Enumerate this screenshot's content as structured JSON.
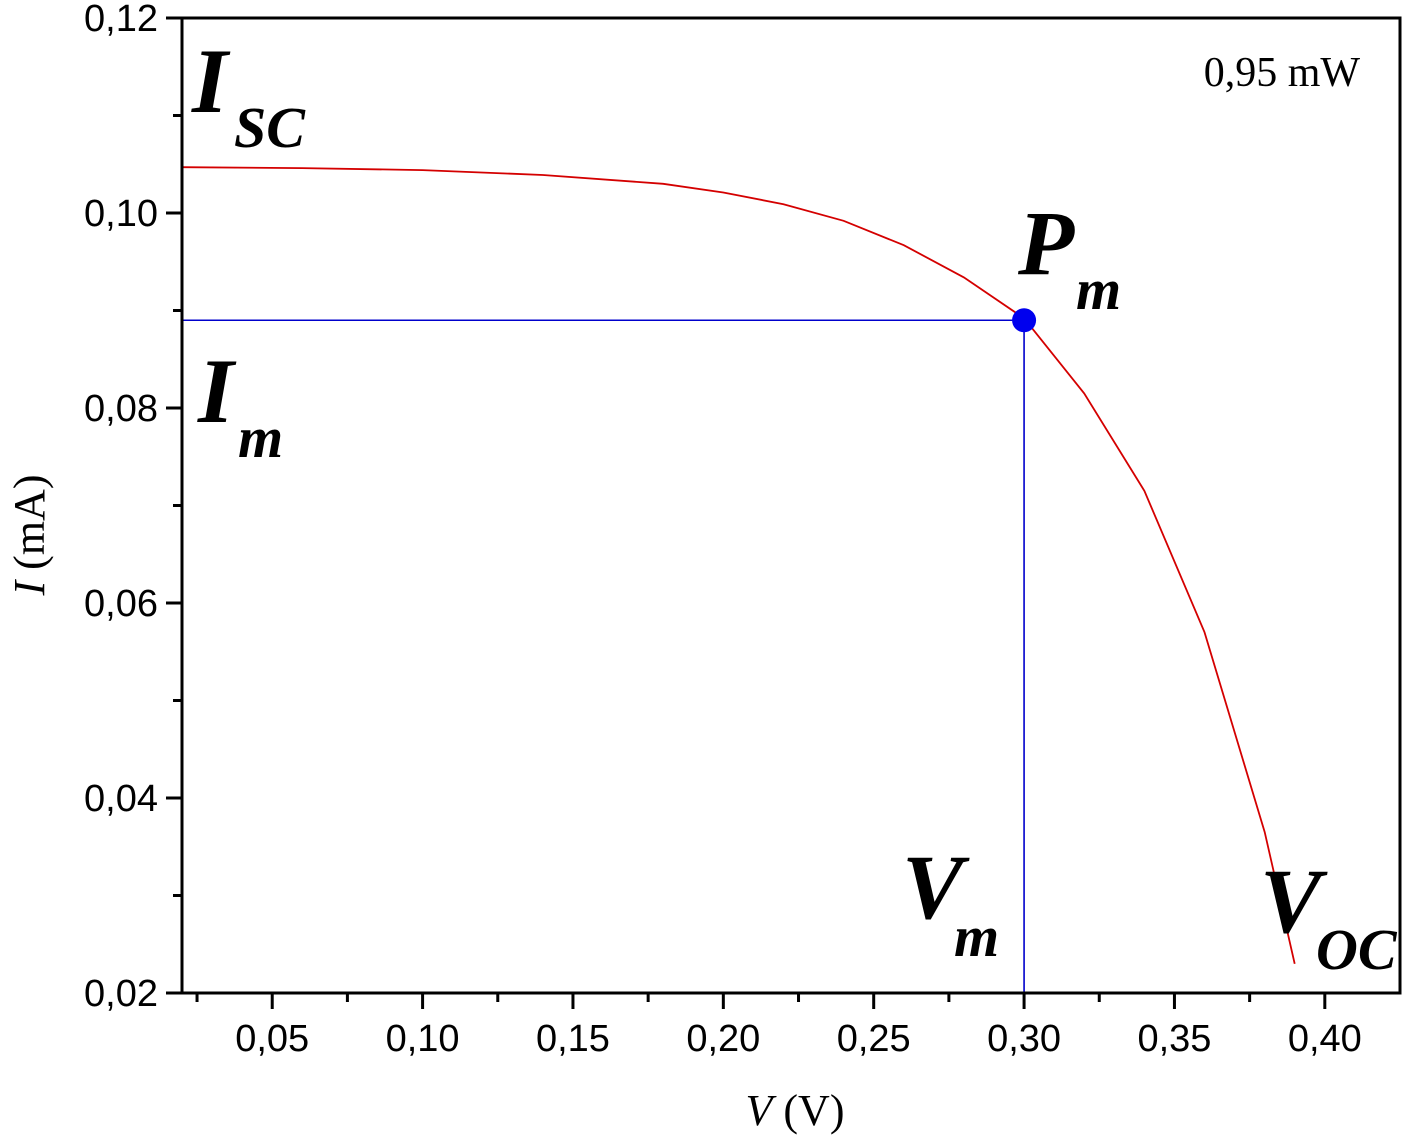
{
  "chart_data": {
    "type": "line",
    "xlabel": {
      "var": "V",
      "unit": " (V)"
    },
    "ylabel": {
      "var": "I",
      "unit": " (mA)"
    },
    "xlim": [
      0.02,
      0.425
    ],
    "ylim": [
      0.02,
      0.12
    ],
    "x_ticks": [
      {
        "value": 0.05,
        "label": "0,05"
      },
      {
        "value": 0.1,
        "label": "0,10"
      },
      {
        "value": 0.15,
        "label": "0,15"
      },
      {
        "value": 0.2,
        "label": "0,20"
      },
      {
        "value": 0.25,
        "label": "0,25"
      },
      {
        "value": 0.3,
        "label": "0,30"
      },
      {
        "value": 0.35,
        "label": "0,35"
      },
      {
        "value": 0.4,
        "label": "0,40"
      }
    ],
    "x_minor_ticks": [
      0.025,
      0.075,
      0.125,
      0.175,
      0.225,
      0.275,
      0.325,
      0.375
    ],
    "y_ticks": [
      {
        "value": 0.02,
        "label": "0,02"
      },
      {
        "value": 0.04,
        "label": "0,04"
      },
      {
        "value": 0.06,
        "label": "0,06"
      },
      {
        "value": 0.08,
        "label": "0,08"
      },
      {
        "value": 0.1,
        "label": "0,10"
      },
      {
        "value": 0.12,
        "label": "0,12"
      }
    ],
    "y_minor_ticks": [
      0.03,
      0.05,
      0.07,
      0.09,
      0.11
    ],
    "series": [
      {
        "color": "#d40000",
        "x": [
          0.02,
          0.06,
          0.1,
          0.14,
          0.18,
          0.2,
          0.22,
          0.24,
          0.26,
          0.28,
          0.3,
          0.32,
          0.34,
          0.36,
          0.38,
          0.39
        ],
        "y": [
          0.1047,
          0.1046,
          0.1044,
          0.1039,
          0.103,
          0.1021,
          0.1009,
          0.0992,
          0.0967,
          0.0934,
          0.0892,
          0.0815,
          0.0715,
          0.057,
          0.0365,
          0.023
        ]
      }
    ],
    "max_power_point": {
      "x": 0.3,
      "y": 0.089,
      "color": "#0000ee"
    },
    "guide_color": "#0000cc",
    "annotations": [
      {
        "main": "I",
        "sub": "SC",
        "near": "top-left"
      },
      {
        "main": "P",
        "sub": "m",
        "near": "max-power-point"
      },
      {
        "main": "I",
        "sub": "m",
        "near": "left, below Im line"
      },
      {
        "main": "V",
        "sub": "m",
        "near": "bottom, left of Vm line"
      },
      {
        "main": "V",
        "sub": "OC",
        "near": "bottom-right"
      }
    ],
    "power_note": "0,95 mW",
    "grid": false
  }
}
